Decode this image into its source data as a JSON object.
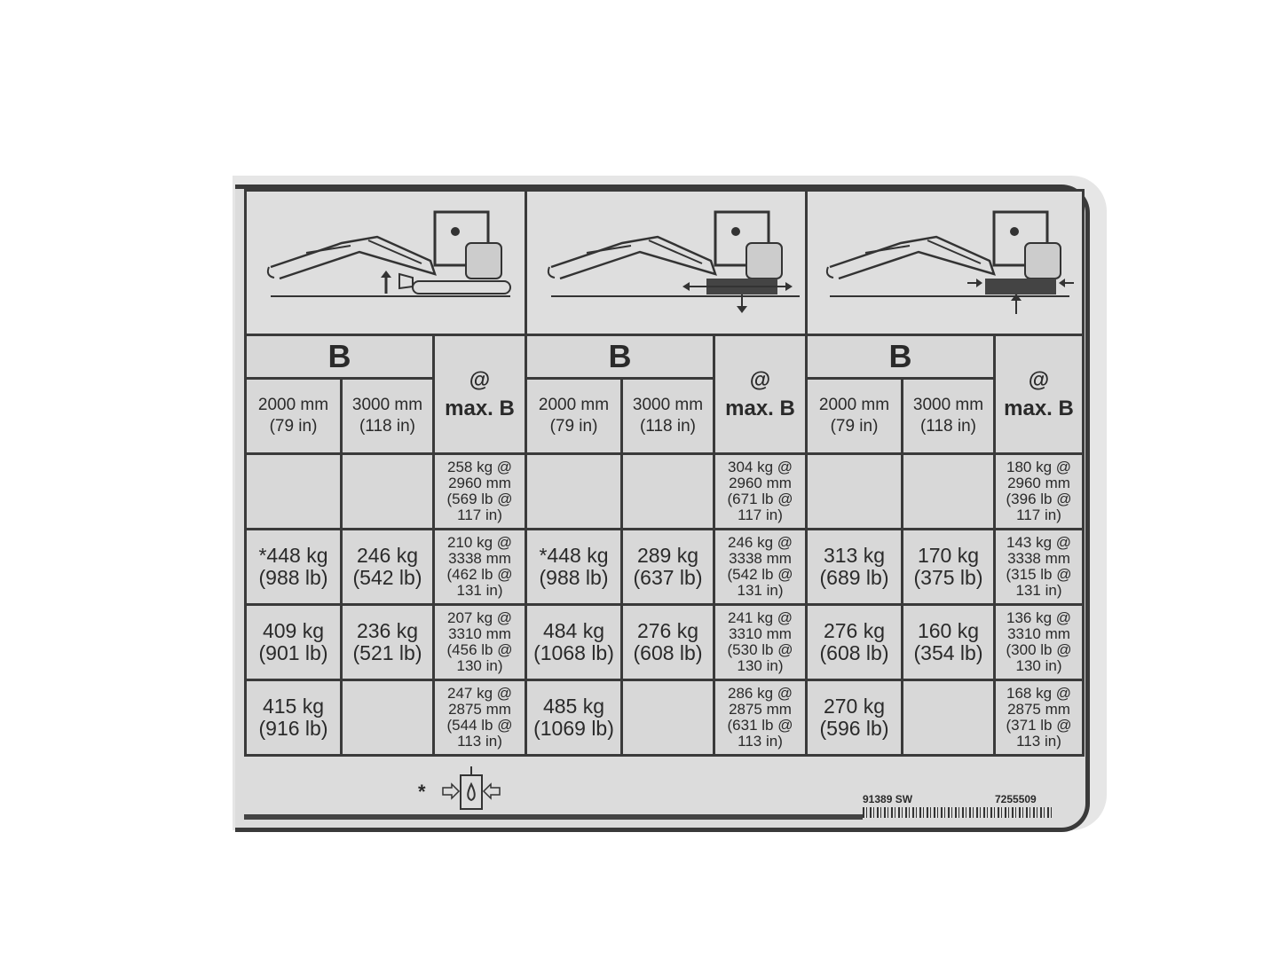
{
  "sections": [
    {
      "pictogram": "excavator-blade-down-icon",
      "b_label": "B",
      "col1": "2000 mm\n(79 in)",
      "col2": "3000 mm\n(118 in)",
      "maxb": "@\nmax. B",
      "rows": [
        [
          "",
          "",
          "258 kg @\n2960 mm\n(569 lb @\n117 in)"
        ],
        [
          "*448 kg\n(988 lb)",
          "246 kg\n(542 lb)",
          "210 kg @\n3338 mm\n(462 lb @\n131 in)"
        ],
        [
          "409 kg\n(901 lb)",
          "236 kg\n(521 lb)",
          "207 kg @\n3310 mm\n(456 lb @\n130 in)"
        ],
        [
          "415 kg\n(916 lb)",
          "",
          "247 kg @\n2875 mm\n(544 lb @\n113 in)"
        ]
      ]
    },
    {
      "pictogram": "excavator-over-side-icon",
      "b_label": "B",
      "col1": "2000 mm\n(79 in)",
      "col2": "3000 mm\n(118 in)",
      "maxb": "@\nmax. B",
      "rows": [
        [
          "",
          "",
          "304 kg @\n2960 mm\n(671 lb @\n117 in)"
        ],
        [
          "*448 kg\n(988 lb)",
          "289 kg\n(637 lb)",
          "246 kg @\n3338 mm\n(542 lb @\n131 in)"
        ],
        [
          "484 kg\n(1068 lb)",
          "276 kg\n(608 lb)",
          "241 kg @\n3310 mm\n(530 lb @\n130 in)"
        ],
        [
          "485 kg\n(1069 lb)",
          "",
          "286 kg @\n2875 mm\n(631 lb @\n113 in)"
        ]
      ]
    },
    {
      "pictogram": "excavator-over-front-icon",
      "b_label": "B",
      "col1": "2000 mm\n(79 in)",
      "col2": "3000 mm\n(118 in)",
      "maxb": "@\nmax. B",
      "rows": [
        [
          "",
          "",
          "180 kg @\n2960 mm\n(396 lb @\n117 in)"
        ],
        [
          "313 kg\n(689 lb)",
          "170 kg\n(375 lb)",
          "143 kg @\n3338 mm\n(315 lb @\n131 in)"
        ],
        [
          "276 kg\n(608 lb)",
          "160 kg\n(354 lb)",
          "136 kg @\n3310 mm\n(300 lb @\n130 in)"
        ],
        [
          "270 kg\n(596 lb)",
          "",
          "168 kg @\n2875 mm\n(371 lb @\n113 in)"
        ]
      ]
    }
  ],
  "footer": {
    "note_marker": "*",
    "note_icon": "hydraulic-pressure-icon",
    "part_code": "91389 SW",
    "part_number": "7255509"
  }
}
